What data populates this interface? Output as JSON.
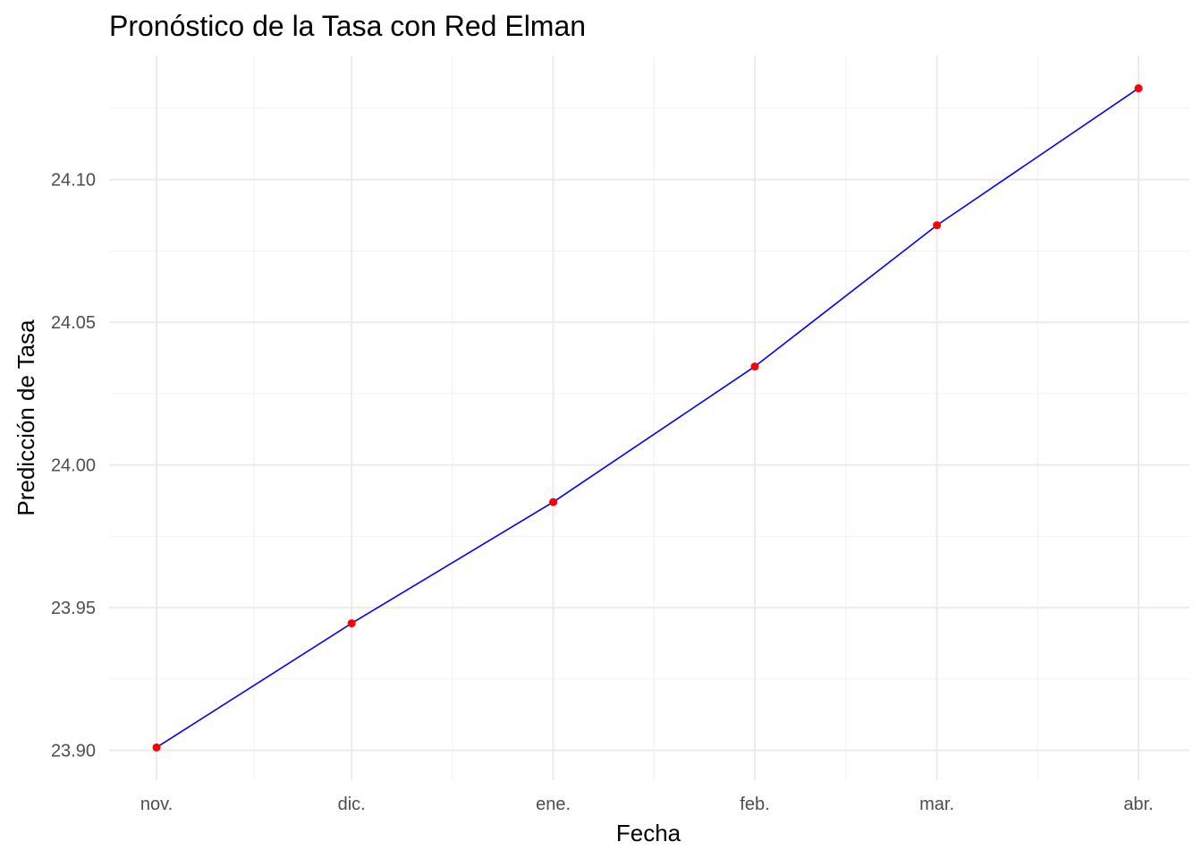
{
  "chart_data": {
    "type": "line",
    "title": "Pronóstico de la Tasa con Red Elman",
    "xlabel": "Fecha",
    "ylabel": "Predicción de Tasa",
    "categories": [
      "nov.",
      "dic.",
      "ene.",
      "feb.",
      "mar.",
      "abr."
    ],
    "x": [
      "2024-11-01",
      "2024-12-01",
      "2025-01-01",
      "2025-02-01",
      "2025-03-01",
      "2025-04-01"
    ],
    "values": [
      23.901,
      23.9445,
      23.987,
      24.0345,
      24.084,
      24.132
    ],
    "yticks": [
      23.9,
      23.95,
      24.0,
      24.05,
      24.1
    ],
    "ytick_labels": [
      "23.90",
      "23.95",
      "24.00",
      "24.05",
      "24.10"
    ],
    "ylim": [
      23.8895,
      24.1435
    ],
    "xlim": [
      "2024-10-24",
      "2024-04-08"
    ],
    "grid": true,
    "legend": "none",
    "line_color": "#0000ff",
    "point_color": "#ff0000"
  }
}
